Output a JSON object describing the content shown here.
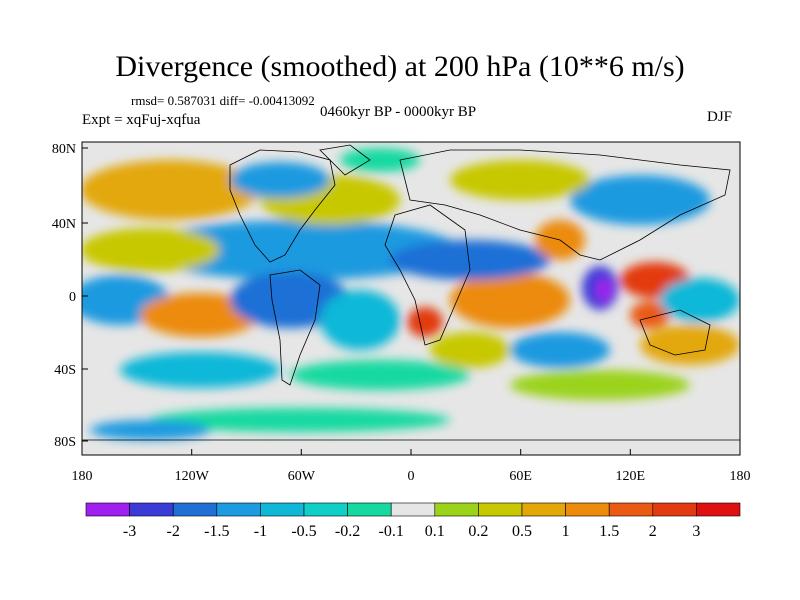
{
  "title": "Divergence (smoothed) at 200 hPa (10**6 m/s)",
  "stats_line": "rmsd= 0.587031 diff= -0.00413092",
  "experiment_label": "Expt = xqFuj-xqfua",
  "period_label": "0460kyr BP - 0000kyr BP",
  "season_label": "DJF",
  "lat_ticks": [
    "80N",
    "40N",
    "0",
    "40S",
    "80S"
  ],
  "lon_ticks": [
    "180",
    "120W",
    "60W",
    "0",
    "60E",
    "120E",
    "180"
  ],
  "colorbar": {
    "labels": [
      "-3",
      "-2",
      "-1.5",
      "-1",
      "-0.5",
      "-0.2",
      "-0.1",
      "0.1",
      "0.2",
      "0.5",
      "1",
      "1.5",
      "2",
      "3"
    ],
    "colors": [
      "#a020f0",
      "#3b3bd8",
      "#1f6fd6",
      "#1d9ae0",
      "#10b8d8",
      "#0fcfc8",
      "#16d9a0",
      "#e6e6e6",
      "#9bd31a",
      "#c8c800",
      "#e3a807",
      "#ec8b0c",
      "#ea5a12",
      "#e33a10",
      "#e01010"
    ]
  },
  "field_colors": {
    "neutral": "#e6e6e6",
    "cont": "#000000"
  }
}
